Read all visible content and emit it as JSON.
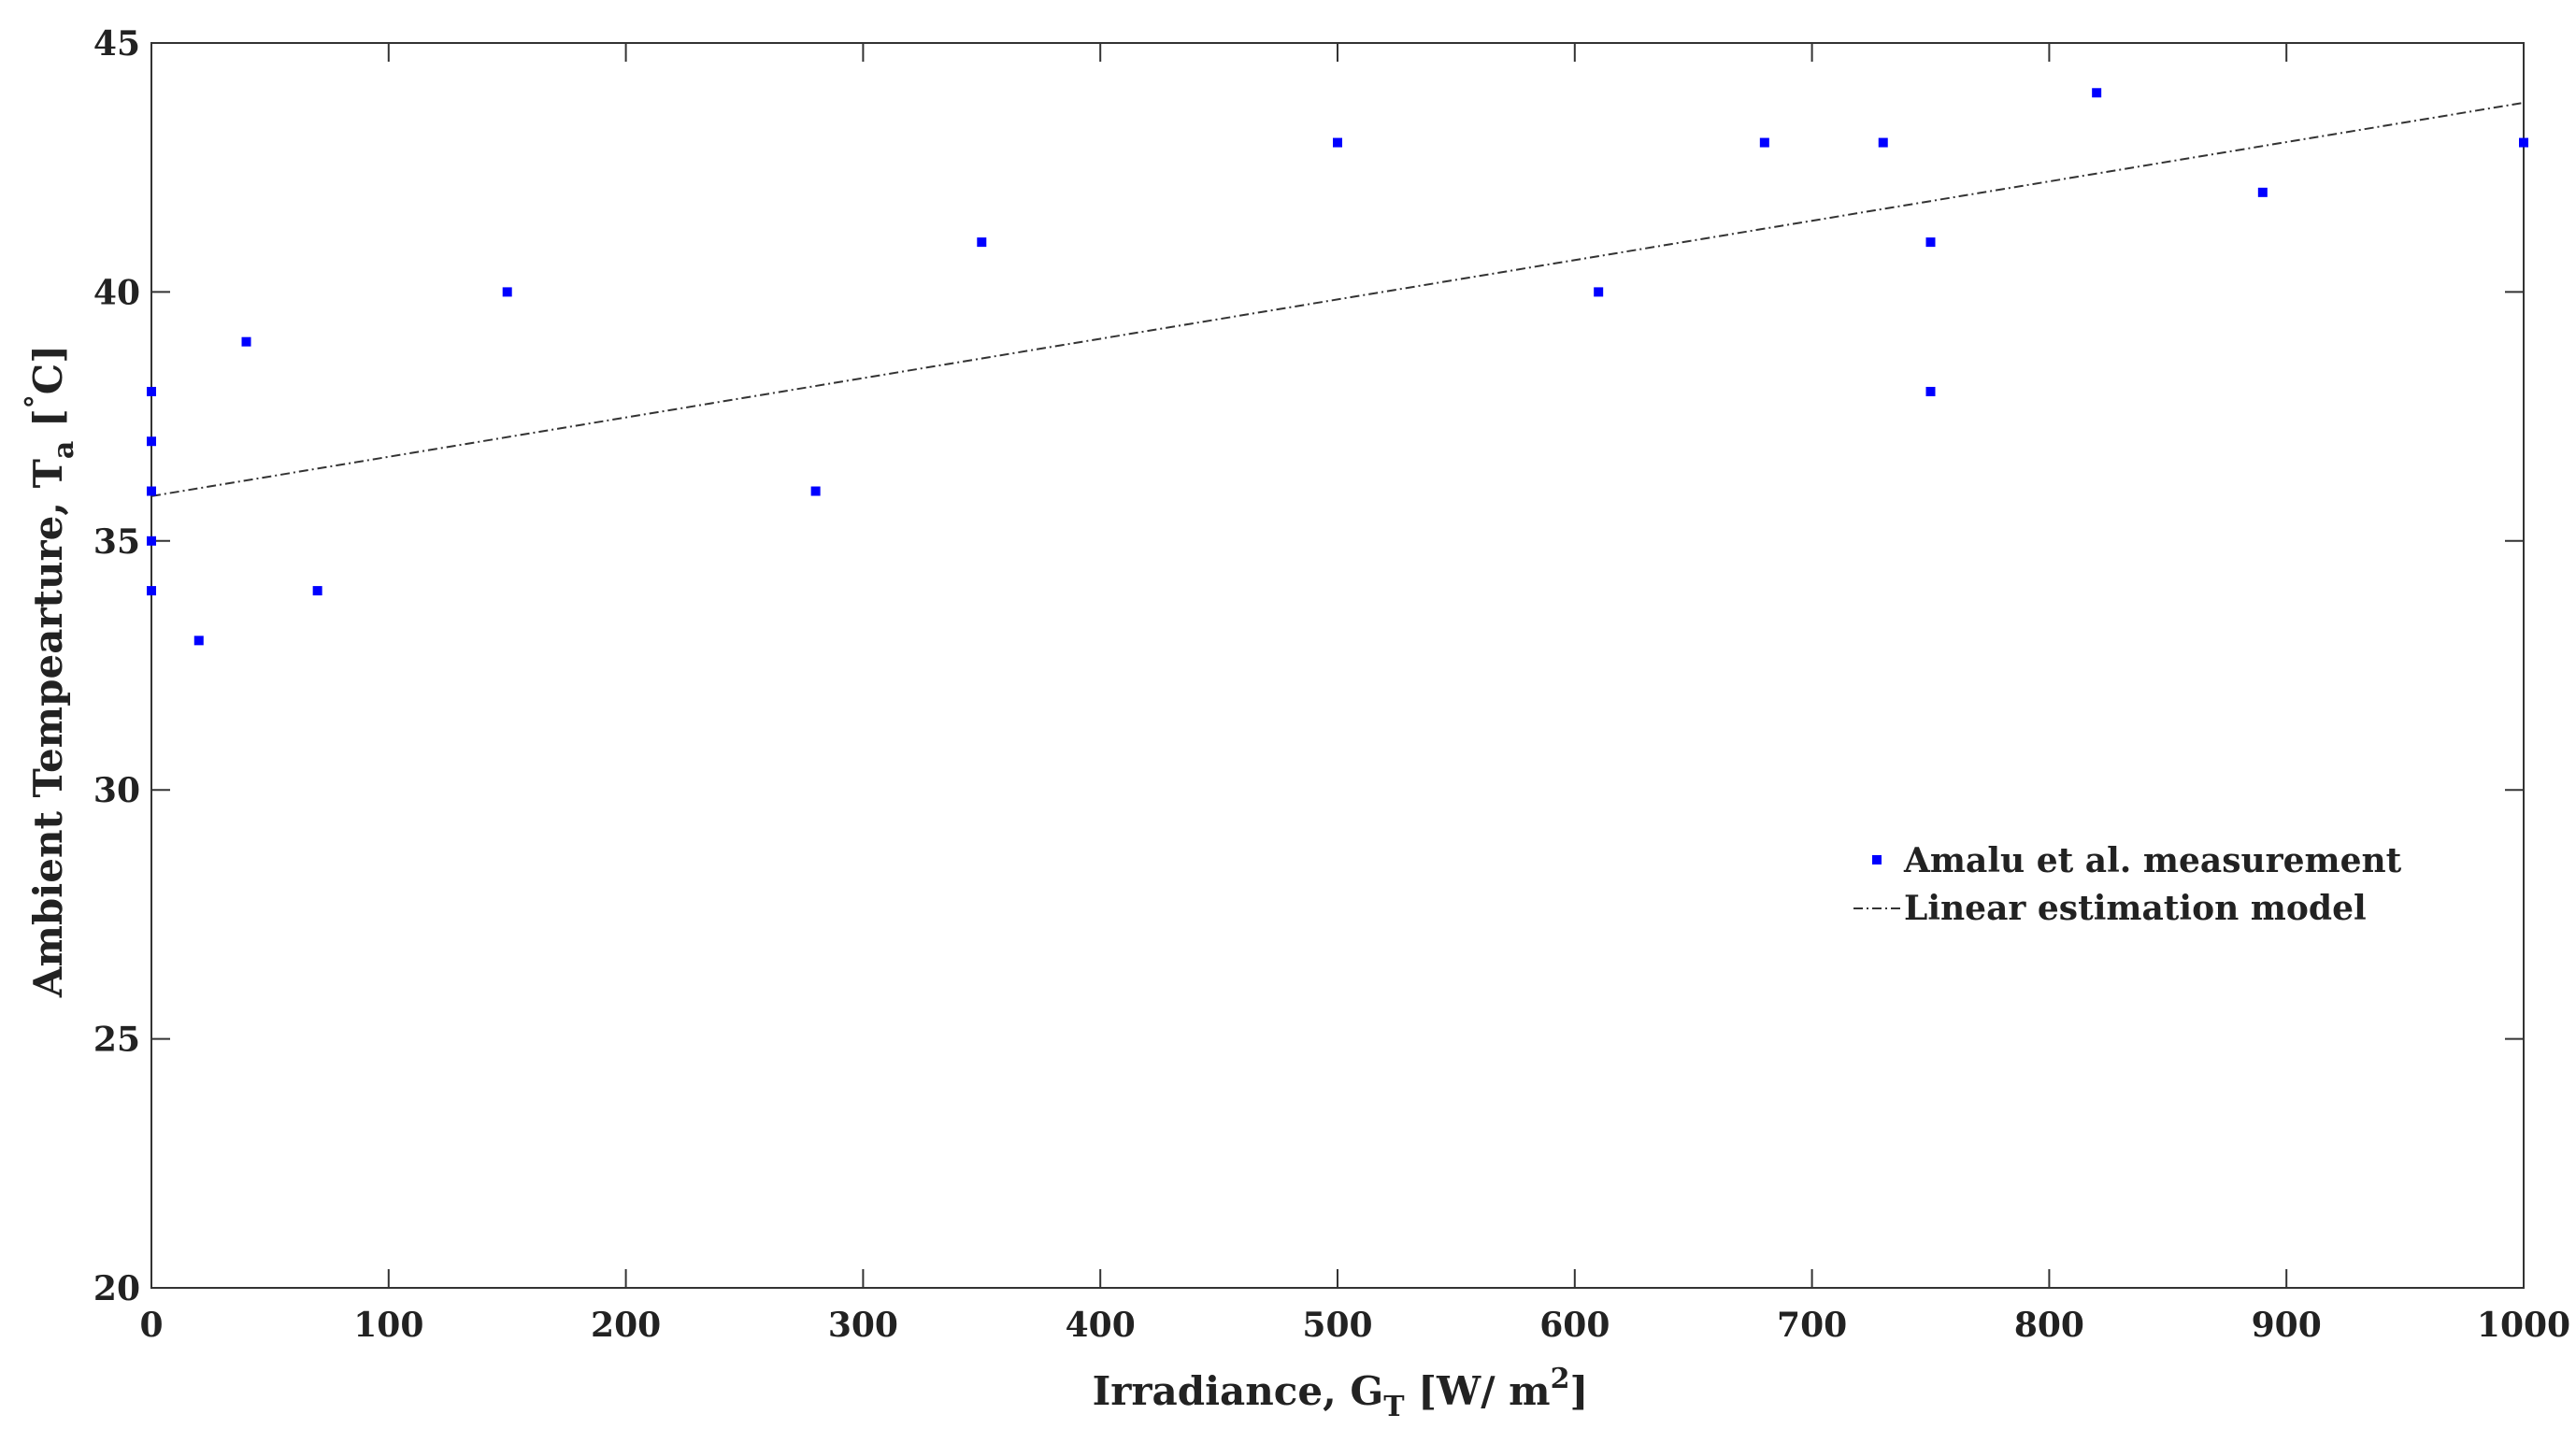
{
  "chart_data": {
    "type": "scatter",
    "xlabel": {
      "main": "Irradiance, G",
      "sub": "T",
      "unit_pre": " [W/ m",
      "sup": "2",
      "unit_post": "]"
    },
    "ylabel": {
      "main": "Ambient Tempearture, T",
      "sub": "a",
      "unit_pre": " [",
      "sup": "°",
      "unit_post": "C]"
    },
    "xlim": [
      0,
      1000
    ],
    "ylim": [
      20,
      45
    ],
    "xticks": [
      0,
      100,
      200,
      300,
      400,
      500,
      600,
      700,
      800,
      900,
      1000
    ],
    "yticks": [
      20,
      25,
      30,
      35,
      40,
      45
    ],
    "grid": false,
    "legend_position": "center-right",
    "series": [
      {
        "name": "Amalu et al. measurement",
        "type": "scatter",
        "color": "#0000ff",
        "marker": "square",
        "points": [
          [
            0,
            38
          ],
          [
            0,
            37
          ],
          [
            0,
            36
          ],
          [
            0,
            35
          ],
          [
            0,
            34
          ],
          [
            20,
            33
          ],
          [
            40,
            39
          ],
          [
            70,
            34
          ],
          [
            150,
            40
          ],
          [
            280,
            36
          ],
          [
            350,
            41
          ],
          [
            500,
            43
          ],
          [
            610,
            40
          ],
          [
            680,
            43
          ],
          [
            730,
            43
          ],
          [
            750,
            41
          ],
          [
            750,
            38
          ],
          [
            820,
            44
          ],
          [
            890,
            42
          ],
          [
            1000,
            43
          ]
        ]
      },
      {
        "name": "Linear estimation model",
        "type": "line",
        "color": "#333333",
        "style": "dash-dot",
        "points": [
          [
            0,
            35.9
          ],
          [
            1000,
            43.8
          ]
        ]
      }
    ]
  }
}
